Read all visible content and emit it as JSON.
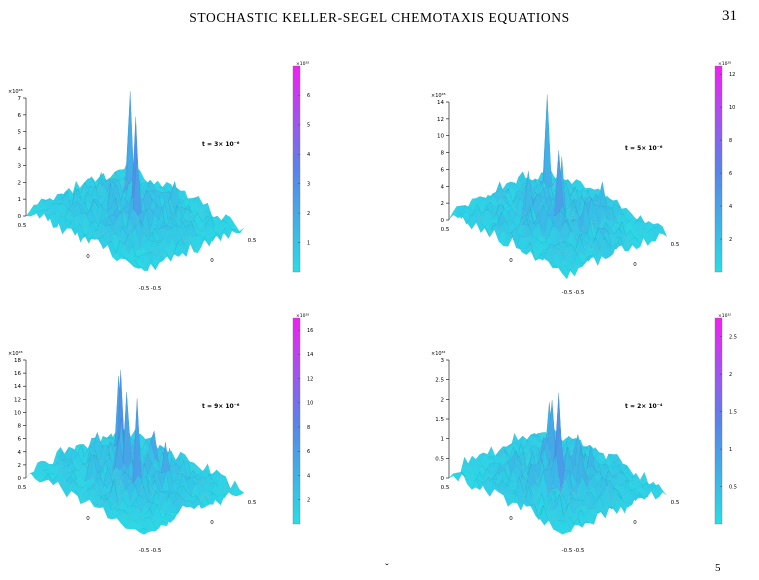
{
  "header": {
    "running_title": "STOCHASTIC KELLER-SEGEL CHEMOTAXIS EQUATIONS",
    "page_number": "31"
  },
  "colors": {
    "low": "#25dfe6",
    "high": "#f21ff4"
  },
  "chart_data": [
    {
      "type": "surface",
      "annotation": "t = 3× 10⁻⁶",
      "z_multiplier": "×10²⁸",
      "z_ticks": [
        "0",
        "1",
        "2",
        "3",
        "4",
        "5",
        "6",
        "7"
      ],
      "x_ticks": [
        "0.5",
        "0",
        "-0.5"
      ],
      "y_ticks": [
        "-0.5",
        "0",
        "0.5"
      ],
      "colorbar_multiplier": "×10²⁸",
      "colorbar_ticks": [
        "1",
        "2",
        "3",
        "4",
        "5",
        "6"
      ],
      "zlim": [
        0,
        7
      ],
      "colorbar_range": [
        0,
        7
      ]
    },
    {
      "type": "surface",
      "annotation": "t = 5× 10⁻⁶",
      "z_multiplier": "×10²⁸",
      "z_ticks": [
        "0",
        "2",
        "4",
        "6",
        "8",
        "10",
        "12",
        "14"
      ],
      "x_ticks": [
        "0.5",
        "0",
        "-0.5"
      ],
      "y_ticks": [
        "-0.5",
        "0",
        "0.5"
      ],
      "colorbar_multiplier": "×10²⁸",
      "colorbar_ticks": [
        "2",
        "4",
        "6",
        "8",
        "10",
        "12"
      ],
      "zlim": [
        0,
        14
      ],
      "colorbar_range": [
        0,
        12.5
      ]
    },
    {
      "type": "surface",
      "annotation": "t = 9× 10⁻⁶",
      "z_multiplier": "×10²⁸",
      "z_ticks": [
        "0",
        "2",
        "4",
        "6",
        "8",
        "10",
        "12",
        "14",
        "16",
        "18"
      ],
      "x_ticks": [
        "0.5",
        "0",
        "-0.5"
      ],
      "y_ticks": [
        "-0.5",
        "0",
        "0.5"
      ],
      "colorbar_multiplier": "×10²⁸",
      "colorbar_ticks": [
        "2",
        "4",
        "6",
        "8",
        "10",
        "12",
        "14",
        "16"
      ],
      "zlim": [
        0,
        18
      ],
      "colorbar_range": [
        0,
        17
      ]
    },
    {
      "type": "surface",
      "annotation": "t = 2× 10⁻⁴",
      "z_multiplier": "×10³²",
      "z_ticks": [
        "0",
        "0.5",
        "1",
        "1.5",
        "2",
        "2.5",
        "3"
      ],
      "x_ticks": [
        "0.5",
        "0",
        "-0.5"
      ],
      "y_ticks": [
        "-0.5",
        "0",
        "0.5"
      ],
      "colorbar_multiplier": "×10³²",
      "colorbar_ticks": [
        "0.5",
        "1",
        "1.5",
        "2",
        "2.5"
      ],
      "zlim": [
        0,
        3
      ],
      "colorbar_range": [
        0,
        2.75
      ]
    }
  ],
  "footer": {
    "left_fragment": "ˇ",
    "right_fragment": "5"
  }
}
